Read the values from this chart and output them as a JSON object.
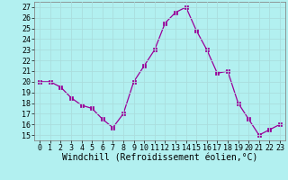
{
  "x": [
    0,
    1,
    2,
    3,
    4,
    5,
    6,
    7,
    8,
    9,
    10,
    11,
    12,
    13,
    14,
    15,
    16,
    17,
    18,
    19,
    20,
    21,
    22,
    23
  ],
  "y": [
    20.0,
    20.0,
    19.5,
    18.5,
    17.8,
    17.5,
    16.5,
    15.7,
    17.0,
    20.0,
    21.5,
    23.0,
    25.5,
    26.5,
    27.0,
    24.8,
    23.0,
    20.8,
    21.0,
    18.0,
    16.5,
    15.0,
    15.5,
    16.0
  ],
  "line_color": "#990099",
  "marker": "s",
  "marker_size": 2.5,
  "bg_color": "#b2f0f0",
  "grid_color": "#aadddd",
  "xlabel": "Windchill (Refroidissement éolien,°C)",
  "ylabel_ticks": [
    15,
    16,
    17,
    18,
    19,
    20,
    21,
    22,
    23,
    24,
    25,
    26,
    27
  ],
  "xlim": [
    -0.5,
    23.5
  ],
  "ylim": [
    14.5,
    27.5
  ],
  "xlabel_fontsize": 7.0,
  "tick_fontsize": 6.0,
  "xtick_labels": [
    "0",
    "1",
    "2",
    "3",
    "4",
    "5",
    "6",
    "7",
    "8",
    "9",
    "10",
    "11",
    "12",
    "13",
    "14",
    "15",
    "16",
    "17",
    "18",
    "19",
    "20",
    "21",
    "22",
    "23"
  ]
}
